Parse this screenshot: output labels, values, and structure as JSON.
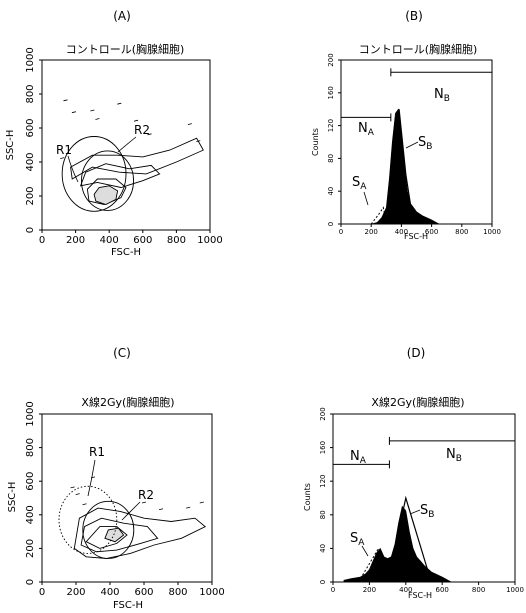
{
  "panels": [
    {
      "letter": "(A)",
      "title": "コントロール(胸腺細胞)",
      "xlabel": "FSC-H",
      "ylabel": "SSC-H",
      "regions": [
        {
          "name": "R1",
          "label": "R1",
          "center": [
            310,
            330
          ],
          "radius": [
            190,
            220
          ],
          "style": "solid"
        },
        {
          "name": "R2",
          "label": "R2",
          "center": [
            390,
            290
          ],
          "radius": [
            155,
            175
          ],
          "style": "solid"
        }
      ]
    },
    {
      "letter": "(B)",
      "title": "コントロール(胸腺細胞)",
      "xlabel": "FSC-H",
      "ylabel": "Counts",
      "annotations": [
        {
          "name": "NA",
          "main": "N",
          "sub": "A"
        },
        {
          "name": "NB",
          "main": "N",
          "sub": "B"
        },
        {
          "name": "SA",
          "main": "S",
          "sub": "A"
        },
        {
          "name": "SB",
          "main": "S",
          "sub": "B"
        }
      ]
    },
    {
      "letter": "(C)",
      "title": "X線2Gy(胸腺細胞)",
      "xlabel": "FSC-H",
      "ylabel": "SSC-H",
      "regions": [
        {
          "name": "R1",
          "label": "R1",
          "center": [
            270,
            370
          ],
          "radius": [
            170,
            200
          ],
          "style": "dotted"
        },
        {
          "name": "R2",
          "label": "R2",
          "center": [
            390,
            310
          ],
          "radius": [
            150,
            170
          ],
          "style": "solid"
        }
      ]
    },
    {
      "letter": "(D)",
      "title": "X線2Gy(胸腺細胞)",
      "xlabel": "FSC-H",
      "ylabel": "Counts",
      "annotations": [
        {
          "name": "NA",
          "main": "N",
          "sub": "A"
        },
        {
          "name": "NB",
          "main": "N",
          "sub": "B"
        },
        {
          "name": "SA",
          "main": "S",
          "sub": "A"
        },
        {
          "name": "SB",
          "main": "S",
          "sub": "B"
        }
      ]
    }
  ],
  "chart_data": [
    {
      "type": "scatter",
      "title": "コントロール(胸腺細胞)",
      "xlabel": "FSC-H",
      "ylabel": "SSC-H",
      "xlim": [
        0,
        1000
      ],
      "ylim": [
        0,
        1000
      ],
      "x_ticks": [
        0,
        200,
        400,
        600,
        800,
        1000
      ],
      "y_ticks": [
        0,
        200,
        400,
        600,
        800,
        1000
      ],
      "contour_levels": [
        [
          [
            180,
            300
          ],
          [
            300,
            370
          ],
          [
            460,
            340
          ],
          [
            620,
            330
          ],
          [
            800,
            400
          ],
          [
            960,
            470
          ],
          [
            920,
            540
          ],
          [
            760,
            470
          ],
          [
            600,
            430
          ],
          [
            450,
            440
          ],
          [
            300,
            440
          ],
          [
            170,
            370
          ]
        ],
        [
          [
            230,
            260
          ],
          [
            330,
            280
          ],
          [
            470,
            250
          ],
          [
            600,
            290
          ],
          [
            700,
            330
          ],
          [
            650,
            380
          ],
          [
            520,
            360
          ],
          [
            380,
            390
          ],
          [
            260,
            340
          ]
        ],
        [
          [
            280,
            170
          ],
          [
            370,
            150
          ],
          [
            470,
            190
          ],
          [
            500,
            250
          ],
          [
            440,
            300
          ],
          [
            330,
            300
          ],
          [
            270,
            240
          ]
        ],
        [
          [
            320,
            170
          ],
          [
            380,
            150
          ],
          [
            440,
            180
          ],
          [
            450,
            230
          ],
          [
            400,
            260
          ],
          [
            340,
            250
          ],
          [
            310,
            210
          ]
        ]
      ],
      "outlier_points": [
        [
          140,
          760
        ],
        [
          190,
          690
        ],
        [
          300,
          700
        ],
        [
          330,
          650
        ],
        [
          560,
          640
        ],
        [
          460,
          740
        ],
        [
          120,
          420
        ],
        [
          640,
          560
        ],
        [
          880,
          620
        ],
        [
          930,
          520
        ]
      ]
    },
    {
      "type": "histogram",
      "title": "コントロール(胸腺細胞)",
      "xlabel": "FSC-H",
      "ylabel": "Counts",
      "xlim": [
        0,
        1000
      ],
      "ylim": [
        0,
        200
      ],
      "x_ticks": [
        0,
        200,
        400,
        600,
        800,
        1000
      ],
      "y_ticks": [
        0,
        40,
        80,
        120,
        160,
        200
      ],
      "histogram": {
        "x": [
          200,
          240,
          270,
          300,
          320,
          340,
          360,
          380,
          400,
          420,
          440,
          460,
          480,
          500,
          540,
          600,
          650
        ],
        "counts": [
          0,
          2,
          8,
          20,
          55,
          100,
          135,
          140,
          110,
          70,
          40,
          25,
          20,
          15,
          10,
          5,
          0
        ]
      },
      "fit_SA": {
        "x": [
          200,
          250,
          280,
          300
        ],
        "y": [
          0,
          12,
          20,
          0
        ]
      },
      "fit_SB": {
        "x": [
          300,
          360,
          385,
          430,
          480
        ],
        "y": [
          0,
          100,
          140,
          60,
          0
        ]
      },
      "bracket_NA": {
        "x": [
          0,
          330
        ],
        "y": 130
      },
      "bracket_NB": {
        "x": [
          330,
          1000
        ],
        "y": 185
      }
    },
    {
      "type": "scatter",
      "title": "X線2Gy(胸腺細胞)",
      "xlabel": "FSC-H",
      "ylabel": "SSC-H",
      "xlim": [
        0,
        1000
      ],
      "ylim": [
        0,
        1000
      ],
      "x_ticks": [
        0,
        200,
        400,
        600,
        800,
        1000
      ],
      "y_ticks": [
        0,
        200,
        400,
        600,
        800,
        1000
      ],
      "contour_levels": [
        [
          [
            190,
            200
          ],
          [
            260,
            150
          ],
          [
            380,
            140
          ],
          [
            520,
            170
          ],
          [
            660,
            220
          ],
          [
            820,
            260
          ],
          [
            960,
            330
          ],
          [
            900,
            380
          ],
          [
            760,
            360
          ],
          [
            600,
            380
          ],
          [
            460,
            420
          ],
          [
            330,
            440
          ],
          [
            220,
            380
          ]
        ],
        [
          [
            230,
            220
          ],
          [
            320,
            180
          ],
          [
            440,
            190
          ],
          [
            580,
            230
          ],
          [
            680,
            260
          ],
          [
            620,
            330
          ],
          [
            480,
            350
          ],
          [
            350,
            380
          ],
          [
            250,
            330
          ]
        ],
        [
          [
            260,
            240
          ],
          [
            340,
            200
          ],
          [
            440,
            230
          ],
          [
            500,
            280
          ],
          [
            440,
            330
          ],
          [
            340,
            330
          ]
        ],
        [
          [
            370,
            260
          ],
          [
            430,
            240
          ],
          [
            480,
            280
          ],
          [
            450,
            320
          ],
          [
            390,
            310
          ]
        ]
      ],
      "outlier_points": [
        [
          180,
          560
        ],
        [
          210,
          520
        ],
        [
          600,
          470
        ],
        [
          700,
          430
        ],
        [
          860,
          440
        ],
        [
          940,
          470
        ],
        [
          300,
          620
        ],
        [
          250,
          460
        ]
      ]
    },
    {
      "type": "histogram",
      "title": "X線2Gy(胸腺細胞)",
      "xlabel": "FSC-H",
      "ylabel": "Counts",
      "xlim": [
        0,
        1000
      ],
      "ylim": [
        0,
        200
      ],
      "x_ticks": [
        0,
        200,
        400,
        600,
        800,
        1000
      ],
      "y_ticks": [
        0,
        40,
        80,
        120,
        160,
        200
      ],
      "histogram": {
        "x": [
          60,
          100,
          150,
          180,
          200,
          220,
          240,
          260,
          280,
          300,
          320,
          340,
          360,
          380,
          400,
          420,
          440,
          460,
          480,
          500,
          540,
          600,
          650
        ],
        "counts": [
          2,
          4,
          6,
          10,
          15,
          25,
          35,
          40,
          30,
          28,
          30,
          45,
          70,
          90,
          85,
          60,
          40,
          30,
          25,
          20,
          12,
          6,
          0
        ]
      },
      "fit_SA": {
        "x": [
          140,
          250,
          300
        ],
        "y": [
          0,
          40,
          0
        ]
      },
      "fit_SB": {
        "x": [
          300,
          400,
          540
        ],
        "y": [
          0,
          100,
          0
        ]
      },
      "bracket_NA": {
        "x": [
          0,
          310
        ],
        "y": 140
      },
      "bracket_NB": {
        "x": [
          310,
          1000
        ],
        "y": 168
      }
    }
  ]
}
